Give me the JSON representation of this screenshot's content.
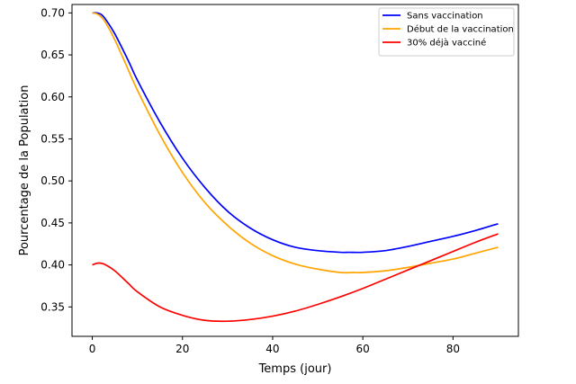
{
  "chart_data": {
    "type": "line",
    "title": "",
    "xlabel": "Temps (jour)",
    "ylabel": "Pourcentage de la Population",
    "xlim": [
      -4.5,
      94.5
    ],
    "ylim": [
      0.315,
      0.71
    ],
    "xticks": [
      0,
      20,
      40,
      60,
      80
    ],
    "yticks": [
      0.35,
      0.4,
      0.45,
      0.5,
      0.55,
      0.6,
      0.65,
      0.7
    ],
    "xtick_labels": [
      "0",
      "20",
      "40",
      "60",
      "80"
    ],
    "ytick_labels": [
      "0.35",
      "0.40",
      "0.45",
      "0.50",
      "0.55",
      "0.60",
      "0.65",
      "0.70"
    ],
    "grid": false,
    "legend_position": "top-right",
    "series": [
      {
        "name": "Sans vaccination",
        "color": "#0000ff",
        "x": [
          0,
          1,
          2,
          3,
          5,
          8,
          10,
          15,
          20,
          25,
          30,
          35,
          40,
          45,
          50,
          55,
          57,
          60,
          65,
          70,
          75,
          80,
          85,
          90
        ],
        "y": [
          0.7,
          0.7,
          0.698,
          0.692,
          0.675,
          0.643,
          0.62,
          0.57,
          0.527,
          0.492,
          0.464,
          0.444,
          0.43,
          0.421,
          0.417,
          0.415,
          0.415,
          0.415,
          0.417,
          0.422,
          0.428,
          0.434,
          0.441,
          0.449
        ]
      },
      {
        "name": "Début de la vaccination",
        "color": "#ffa500",
        "x": [
          0,
          1,
          2,
          3,
          5,
          8,
          10,
          15,
          20,
          25,
          30,
          35,
          40,
          45,
          50,
          55,
          58,
          60,
          65,
          70,
          75,
          80,
          85,
          90
        ],
        "y": [
          0.7,
          0.699,
          0.695,
          0.688,
          0.668,
          0.632,
          0.608,
          0.555,
          0.51,
          0.474,
          0.447,
          0.426,
          0.411,
          0.401,
          0.395,
          0.391,
          0.391,
          0.391,
          0.393,
          0.397,
          0.402,
          0.407,
          0.414,
          0.421
        ]
      },
      {
        "name": "30% déjà vacciné",
        "color": "#ff0000",
        "x": [
          0,
          1,
          2,
          3,
          5,
          8,
          10,
          15,
          20,
          25,
          30,
          35,
          40,
          45,
          50,
          55,
          60,
          65,
          70,
          75,
          80,
          85,
          90
        ],
        "y": [
          0.4,
          0.402,
          0.402,
          0.4,
          0.393,
          0.378,
          0.368,
          0.35,
          0.34,
          0.334,
          0.333,
          0.335,
          0.339,
          0.345,
          0.353,
          0.362,
          0.372,
          0.383,
          0.394,
          0.405,
          0.416,
          0.427,
          0.437
        ]
      }
    ]
  }
}
